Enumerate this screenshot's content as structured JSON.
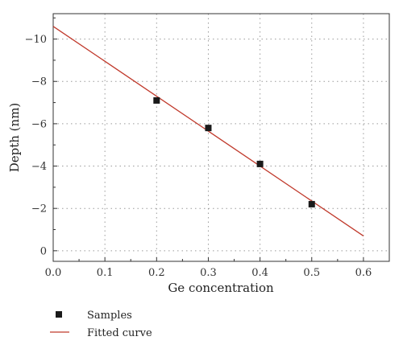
{
  "chart_data": {
    "type": "scatter",
    "xlabel": "Ge concentration",
    "ylabel": "Depth (nm)",
    "xlim": [
      0.0,
      0.65
    ],
    "ylim": [
      0.5,
      -11.2
    ],
    "y_axis_reversed": true,
    "x_ticks": [
      0.0,
      0.1,
      0.2,
      0.3,
      0.4,
      0.5,
      0.6
    ],
    "x_tick_labels": [
      "0.0",
      "0.1",
      "0.2",
      "0.3",
      "0.4",
      "0.5",
      "0.6"
    ],
    "y_ticks": [
      0,
      -2,
      -4,
      -6,
      -8,
      -10
    ],
    "y_tick_labels": [
      "0",
      "−2",
      "−4",
      "−6",
      "−8",
      "−10"
    ],
    "grid": true,
    "legend_position": "bottom-left, below plot",
    "series": [
      {
        "name": "Samples",
        "kind": "scatter",
        "marker": "square",
        "color": "#1a1a1a",
        "x": [
          0.2,
          0.3,
          0.4,
          0.5
        ],
        "y": [
          -7.1,
          -5.8,
          -4.1,
          -2.2
        ]
      },
      {
        "name": "Fitted curve",
        "kind": "line",
        "color": "#c0392b",
        "x": [
          0.0,
          0.6
        ],
        "y": [
          -10.6,
          -0.7
        ]
      }
    ]
  }
}
